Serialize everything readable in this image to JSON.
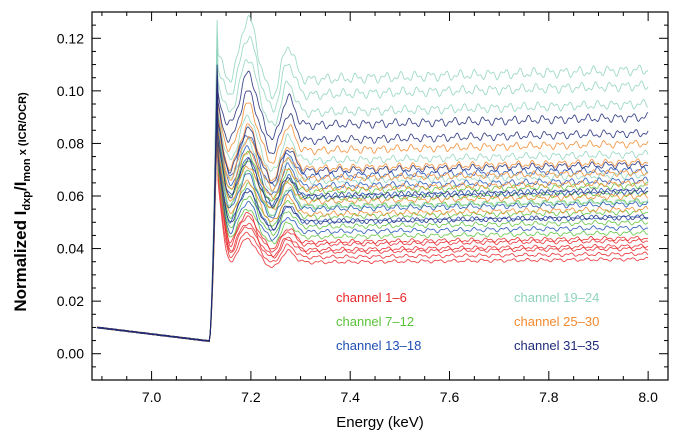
{
  "chart_data": {
    "type": "line",
    "title": "",
    "xlabel": "Energy (keV)",
    "ylabel": {
      "prefix": "Normalized I",
      "sub1": "dxp",
      "mid": "/I",
      "sub2": "mon",
      "suffix": " x (ICR/OCR)"
    },
    "xlim": [
      6.88,
      8.04
    ],
    "ylim": [
      -0.01,
      0.13
    ],
    "x_ticks": [
      7.0,
      7.2,
      7.4,
      7.6,
      7.8,
      8.0
    ],
    "x_tick_labels": [
      "7.0",
      "7.2",
      "7.4",
      "7.6",
      "7.8",
      "8.0"
    ],
    "y_ticks": [
      0.0,
      0.02,
      0.04,
      0.06,
      0.08,
      0.1,
      0.12
    ],
    "y_tick_labels": [
      "0.00",
      "0.02",
      "0.04",
      "0.06",
      "0.08",
      "0.10",
      "0.12"
    ],
    "grid": false,
    "legend_position": "bottom-right",
    "edge_energy_keV": 7.12,
    "groups": [
      {
        "name": "channel  1–6",
        "color": "#e8272a",
        "final_values": [
          0.036,
          0.038,
          0.04,
          0.041,
          0.043,
          0.044
        ],
        "peak_values": [
          0.086,
          0.09,
          0.095,
          0.099,
          0.104,
          0.108
        ]
      },
      {
        "name": "channel  7–12",
        "color": "#5cc23a",
        "final_values": [
          0.046,
          0.05,
          0.054,
          0.058,
          0.061,
          0.064
        ],
        "peak_values": [
          0.089,
          0.092,
          0.096,
          0.099,
          0.102,
          0.105
        ]
      },
      {
        "name": "channel  13–18",
        "color": "#1f4fb4",
        "final_values": [
          0.048,
          0.052,
          0.057,
          0.062,
          0.066,
          0.07
        ],
        "peak_values": [
          0.093,
          0.097,
          0.1,
          0.104,
          0.107,
          0.11
        ]
      },
      {
        "name": "channel  19–24",
        "color": "#8fd3bd",
        "final_values": [
          0.058,
          0.068,
          0.076,
          0.095,
          0.102,
          0.108
        ],
        "peak_values": [
          0.099,
          0.104,
          0.108,
          0.116,
          0.121,
          0.127
        ]
      },
      {
        "name": "channel  25–30",
        "color": "#f28a2e",
        "final_values": [
          0.055,
          0.06,
          0.065,
          0.069,
          0.073,
          0.08
        ],
        "peak_values": [
          0.09,
          0.094,
          0.097,
          0.101,
          0.104,
          0.108
        ]
      },
      {
        "name": "channel  31–35",
        "color": "#1f2a78",
        "final_values": [
          0.052,
          0.062,
          0.072,
          0.084,
          0.09
        ],
        "peak_values": [
          0.093,
          0.098,
          0.102,
          0.106,
          0.11
        ]
      }
    ]
  }
}
